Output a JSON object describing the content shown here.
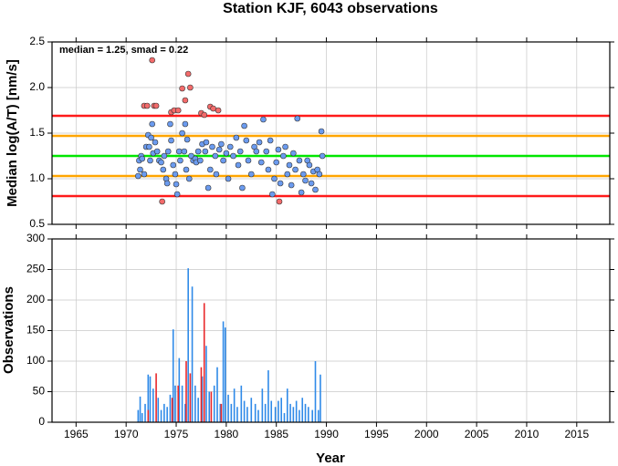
{
  "chart_data": [
    {
      "type": "scatter",
      "title": "Station KJF, 6043 observations",
      "annotation": "median = 1.25, smad = 0.22",
      "ylabel": "Median log(A/T) [nm/s]",
      "xlim": [
        1962.6,
        2018.3
      ],
      "ylim": [
        0.5,
        2.5
      ],
      "xticks": [
        1965,
        1970,
        1975,
        1980,
        1985,
        1990,
        1995,
        2000,
        2005,
        2010,
        2015
      ],
      "yticks": [
        0.5,
        {
          "value": 1,
          "label": "1.0"
        },
        1.5,
        {
          "value": 2,
          "label": "2.0"
        },
        2.5
      ],
      "grid": true,
      "hlines": [
        {
          "value": 1.25,
          "color": "#00e600"
        },
        {
          "value": 1.47,
          "color": "#ffa500"
        },
        {
          "value": 1.03,
          "color": "#ffa500"
        },
        {
          "value": 1.69,
          "color": "#ff1a1a"
        },
        {
          "value": 0.81,
          "color": "#ff1a1a"
        }
      ],
      "series": [
        {
          "color": "#6b9bef",
          "x": [
            1971.2,
            1971.3,
            1971.4,
            1971.5,
            1971.6,
            1971.8,
            1972.0,
            1972.2,
            1972.3,
            1972.4,
            1972.5,
            1972.6,
            1972.7,
            1972.9,
            1973.1,
            1973.3,
            1973.5,
            1973.7,
            1973.8,
            1974.0,
            1974.1,
            1974.2,
            1974.4,
            1974.5,
            1974.7,
            1974.9,
            1975.0,
            1975.1,
            1975.3,
            1975.4,
            1975.6,
            1975.8,
            1975.9,
            1976.0,
            1976.1,
            1976.3,
            1976.5,
            1976.7,
            1976.9,
            1977.0,
            1977.2,
            1977.4,
            1977.6,
            1977.9,
            1978.0,
            1978.2,
            1978.4,
            1978.6,
            1978.9,
            1979.0,
            1979.3,
            1979.5,
            1979.7,
            1980.0,
            1980.2,
            1980.4,
            1980.7,
            1981.0,
            1981.2,
            1981.4,
            1981.6,
            1981.8,
            1982.0,
            1982.2,
            1982.5,
            1982.8,
            1983.0,
            1983.3,
            1983.5,
            1983.7,
            1984.0,
            1984.2,
            1984.4,
            1984.6,
            1984.8,
            1985.0,
            1985.2,
            1985.4,
            1985.7,
            1985.9,
            1986.1,
            1986.3,
            1986.5,
            1986.7,
            1986.9,
            1987.1,
            1987.3,
            1987.5,
            1987.7,
            1987.9,
            1988.1,
            1988.3,
            1988.5,
            1988.7,
            1988.9,
            1989.1,
            1989.3,
            1989.5,
            1989.6
          ],
          "values": [
            1.03,
            1.2,
            1.1,
            1.25,
            1.22,
            1.05,
            1.35,
            1.48,
            1.35,
            1.2,
            1.45,
            1.6,
            1.28,
            1.4,
            1.3,
            1.2,
            1.18,
            1.1,
            1.25,
            1.0,
            0.95,
            1.3,
            1.6,
            1.42,
            1.15,
            1.05,
            0.94,
            0.83,
            1.3,
            1.2,
            1.5,
            1.3,
            1.6,
            1.1,
            1.43,
            1.0,
            1.25,
            1.2,
            1.22,
            1.18,
            1.3,
            1.2,
            1.38,
            1.3,
            1.4,
            0.9,
            1.1,
            1.35,
            1.25,
            1.05,
            1.32,
            1.38,
            1.2,
            1.28,
            1.0,
            1.35,
            1.25,
            1.45,
            1.15,
            1.3,
            0.9,
            1.58,
            1.42,
            1.2,
            1.05,
            1.35,
            1.3,
            1.4,
            1.18,
            1.65,
            1.3,
            1.1,
            1.42,
            0.83,
            1.0,
            1.18,
            1.32,
            0.95,
            1.25,
            1.35,
            1.05,
            1.15,
            0.93,
            1.28,
            1.1,
            1.66,
            1.2,
            0.85,
            1.05,
            0.98,
            1.2,
            1.15,
            0.95,
            1.08,
            0.88,
            1.1,
            1.05,
            1.52,
            1.25
          ]
        },
        {
          "color": "#f36b6b",
          "x": [
            1971.8,
            1972.1,
            1972.6,
            1972.8,
            1973.0,
            1973.6,
            1974.5,
            1974.8,
            1975.2,
            1975.6,
            1975.9,
            1976.2,
            1976.4,
            1977.5,
            1977.8,
            1978.4,
            1978.7,
            1979.2,
            1985.3
          ],
          "values": [
            1.8,
            1.8,
            2.3,
            1.8,
            1.8,
            0.75,
            1.73,
            1.75,
            1.75,
            1.99,
            1.86,
            2.15,
            2.0,
            1.72,
            1.7,
            1.79,
            1.77,
            1.75,
            0.75
          ]
        }
      ]
    },
    {
      "type": "bar",
      "ylabel": "Observations",
      "xlabel": "Year",
      "xlim": [
        1962.6,
        2018.3
      ],
      "ylim": [
        0,
        300
      ],
      "xticks": [
        1965,
        1970,
        1975,
        1980,
        1985,
        1990,
        1995,
        2000,
        2005,
        2010,
        2015
      ],
      "yticks": [
        0,
        50,
        100,
        150,
        200,
        250,
        300
      ],
      "grid": true,
      "series": [
        {
          "color": "#2f8ae8",
          "x": [
            1971.2,
            1971.4,
            1971.6,
            1971.9,
            1972.2,
            1972.4,
            1972.7,
            1973.2,
            1973.5,
            1973.8,
            1974.1,
            1974.4,
            1974.7,
            1974.9,
            1975.3,
            1975.6,
            1975.9,
            1976.2,
            1976.6,
            1976.9,
            1977.2,
            1977.6,
            1978.0,
            1978.3,
            1978.8,
            1979.1,
            1979.4,
            1979.7,
            1979.9,
            1980.2,
            1980.5,
            1980.8,
            1981.1,
            1981.5,
            1981.8,
            1982.1,
            1982.5,
            1982.9,
            1983.2,
            1983.6,
            1983.9,
            1984.2,
            1984.5,
            1984.9,
            1985.2,
            1985.5,
            1985.8,
            1986.1,
            1986.4,
            1986.7,
            1987.0,
            1987.3,
            1987.6,
            1987.9,
            1988.2,
            1988.6,
            1988.9,
            1989.2,
            1989.4
          ],
          "values": [
            20,
            42,
            15,
            30,
            78,
            75,
            55,
            40,
            20,
            30,
            25,
            45,
            152,
            60,
            105,
            60,
            30,
            252,
            222,
            60,
            40,
            75,
            125,
            50,
            60,
            90,
            30,
            165,
            155,
            45,
            30,
            55,
            25,
            60,
            35,
            25,
            40,
            30,
            20,
            55,
            30,
            85,
            35,
            25,
            35,
            40,
            15,
            55,
            30,
            25,
            35,
            20,
            40,
            30,
            25,
            20,
            100,
            20,
            78
          ]
        },
        {
          "color": "#e8282b",
          "x": [
            1972.2,
            1973.0,
            1974.6,
            1975.2,
            1976.0,
            1976.4,
            1977.5,
            1977.8,
            1978.5,
            1979.5
          ],
          "values": [
            20,
            80,
            40,
            60,
            100,
            80,
            90,
            195,
            50,
            30
          ]
        }
      ]
    }
  ]
}
